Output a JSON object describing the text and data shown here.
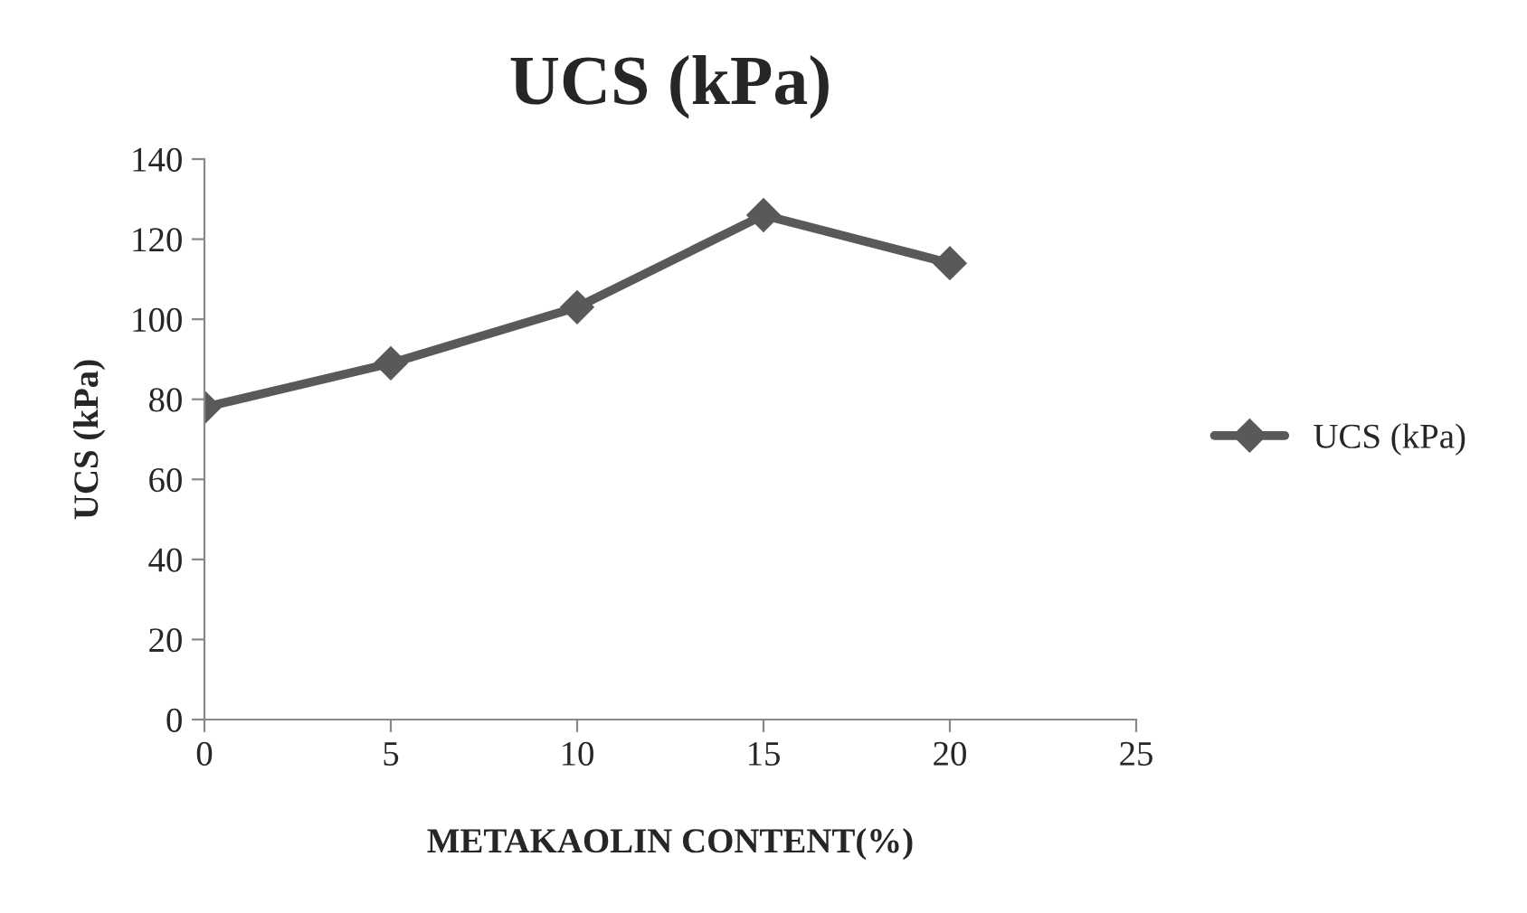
{
  "chart_data": {
    "type": "line",
    "title": "UCS (kPa)",
    "xlabel": "METAKAOLIN CONTENT(%)",
    "ylabel": "UCS (kPa)",
    "x": [
      0,
      5,
      10,
      15,
      20
    ],
    "series": [
      {
        "name": "UCS (kPa)",
        "color": "#595959",
        "values": [
          78,
          89,
          103,
          126,
          114
        ]
      }
    ],
    "xlim": [
      0,
      25
    ],
    "xticks": [
      0,
      5,
      10,
      15,
      20,
      25
    ],
    "ylim": [
      0,
      140
    ],
    "yticks": [
      0,
      20,
      40,
      60,
      80,
      100,
      120,
      140
    ],
    "grid": false,
    "legend": "right",
    "marker": "diamond",
    "line_style": "solid"
  }
}
